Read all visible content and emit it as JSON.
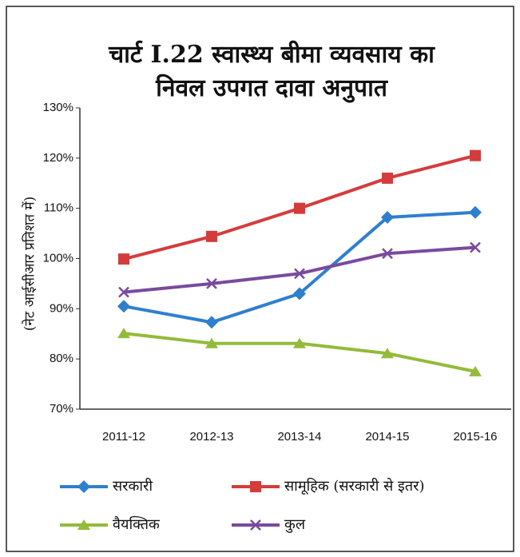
{
  "chart_data": {
    "type": "line",
    "title": [
      "चार्ट I.22 स्वास्थ्य बीमा व्यवसाय का",
      "निवल उपगत दावा अनुपात"
    ],
    "y_label": "(नेट आईसीआर प्रतिशत में)",
    "categories": [
      "2011-12",
      "2012-13",
      "2013-14",
      "2014-15",
      "2015-16"
    ],
    "series": [
      {
        "name": "सरकारी",
        "color": "#2f7fcf",
        "marker": "diamond",
        "values": [
          90.5,
          87.3,
          93,
          108.2,
          109.2
        ]
      },
      {
        "name": "सामूहिक (सरकारी से इतर)",
        "color": "#d43c3c",
        "marker": "square",
        "values": [
          99.9,
          104.4,
          110,
          116,
          120.5
        ]
      },
      {
        "name": "वैयक्तिक",
        "color": "#93bb3a",
        "marker": "triangle",
        "values": [
          85.1,
          83.1,
          83.1,
          81.1,
          77.5
        ]
      },
      {
        "name": "कुल",
        "color": "#7a4a9e",
        "marker": "x",
        "values": [
          93.3,
          95,
          97,
          101,
          102.2
        ]
      }
    ],
    "ylim": [
      70,
      130
    ],
    "yticks": [
      {
        "value": 70,
        "label": "70%"
      },
      {
        "value": 80,
        "label": "80%"
      },
      {
        "value": 90,
        "label": "90%"
      },
      {
        "value": 100,
        "label": "100%"
      },
      {
        "value": 110,
        "label": "110%"
      },
      {
        "value": 120,
        "label": "120%"
      },
      {
        "value": 130,
        "label": "130%"
      }
    ]
  }
}
